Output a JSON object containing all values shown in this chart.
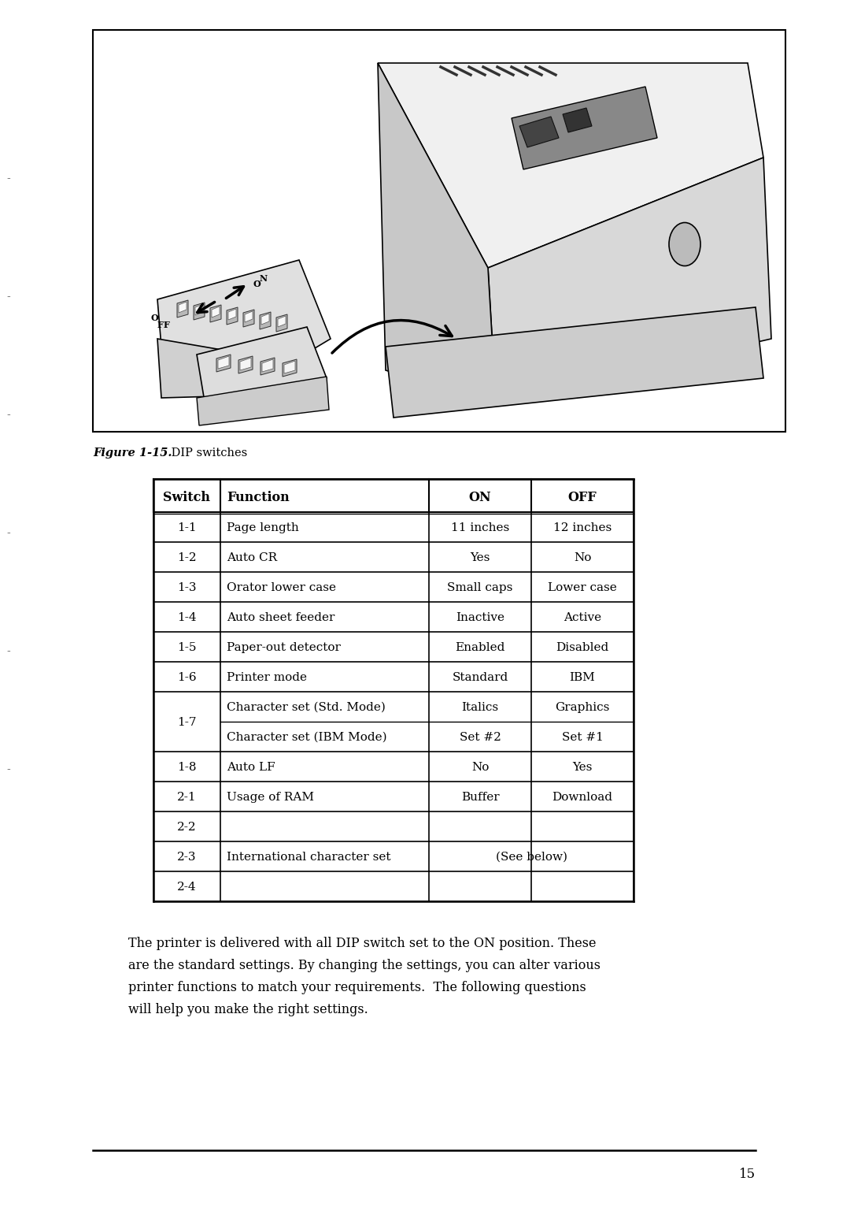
{
  "page_bg": "#ffffff",
  "figure_caption": "Figure 1-15. DIP switches",
  "figure_caption_bold_part": "Figure 1-15.",
  "table_headers": [
    "Switch",
    "Function",
    "ON",
    "OFF"
  ],
  "table_rows": [
    {
      "switch": "1-1",
      "function": "Page length",
      "on": "11 inches",
      "off": "12 inches",
      "type": "normal"
    },
    {
      "switch": "1-2",
      "function": "Auto CR",
      "on": "Yes",
      "off": "No",
      "type": "normal"
    },
    {
      "switch": "1-3",
      "function": "Orator lower case",
      "on": "Small caps",
      "off": "Lower case",
      "type": "normal"
    },
    {
      "switch": "1-4",
      "function": "Auto sheet feeder",
      "on": "Inactive",
      "off": "Active",
      "type": "normal"
    },
    {
      "switch": "1-5",
      "function": "Paper-out detector",
      "on": "Enabled",
      "off": "Disabled",
      "type": "normal"
    },
    {
      "switch": "1-6",
      "function": "Printer mode",
      "on": "Standard",
      "off": "IBM",
      "type": "normal"
    },
    {
      "switch": "1-7",
      "function": "Character set (Std. Mode)",
      "on": "Italics",
      "off": "Graphics",
      "type": "sub1"
    },
    {
      "switch": "1-7",
      "function": "Character set (IBM Mode)",
      "on": "Set #2",
      "off": "Set #1",
      "type": "sub2"
    },
    {
      "switch": "1-8",
      "function": "Auto LF",
      "on": "No",
      "off": "Yes",
      "type": "normal"
    },
    {
      "switch": "2-1",
      "function": "Usage of RAM",
      "on": "Buffer",
      "off": "Download",
      "type": "normal"
    },
    {
      "switch": "2-2",
      "function": "",
      "on": "",
      "off": "",
      "type": "normal"
    },
    {
      "switch": "2-3",
      "function": "International character set",
      "on": "(See below)",
      "off": "",
      "type": "merged"
    },
    {
      "switch": "2-4",
      "function": "",
      "on": "",
      "off": "",
      "type": "normal"
    }
  ],
  "paragraph_text": "The printer is delivered with all DIP switch set to the ON position. These are the standard settings. By changing the settings, you can alter various printer functions to match your requirements.  The following questions will help you make the right settings.",
  "page_number": "15",
  "image_box_color": "#000000",
  "text_color": "#000000",
  "table_border_color": "#000000",
  "header_fill_color": "#ffffff",
  "left_margin_marks": [
    "-",
    "-",
    "-",
    "-",
    "-",
    "-"
  ]
}
